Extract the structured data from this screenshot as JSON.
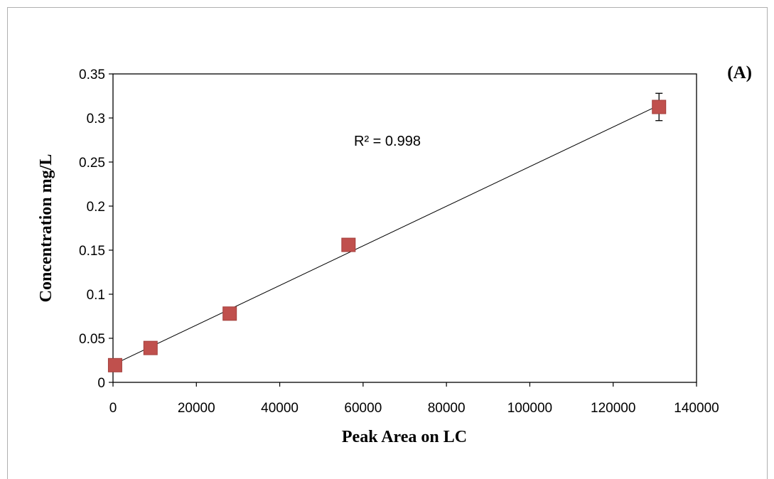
{
  "chart_data": {
    "type": "scatter",
    "panel_label": "(A)",
    "xlabel": "Peak Area on LC",
    "ylabel": "Concentration mg/L",
    "xlim": [
      0,
      140000
    ],
    "ylim": [
      0,
      0.35
    ],
    "x_ticks": [
      "0",
      "20000",
      "40000",
      "60000",
      "80000",
      "100000",
      "120000",
      "140000"
    ],
    "y_ticks": [
      "0",
      "0.05",
      "0.1",
      "0.15",
      "0.2",
      "0.25",
      "0.3",
      "0.35"
    ],
    "x": [
      500,
      9000,
      28000,
      56500,
      131000
    ],
    "y": [
      0.0195,
      0.039,
      0.078,
      0.156,
      0.3125
    ],
    "error_bars": [
      0.0,
      0.0,
      0.0,
      0.003,
      0.0155
    ],
    "trendline": {
      "type": "linear",
      "from": [
        0,
        0.02
      ],
      "to": [
        131000,
        0.3145
      ]
    },
    "annotation": "R² = 0.998",
    "marker_color": "#c0504d",
    "grid": false
  }
}
